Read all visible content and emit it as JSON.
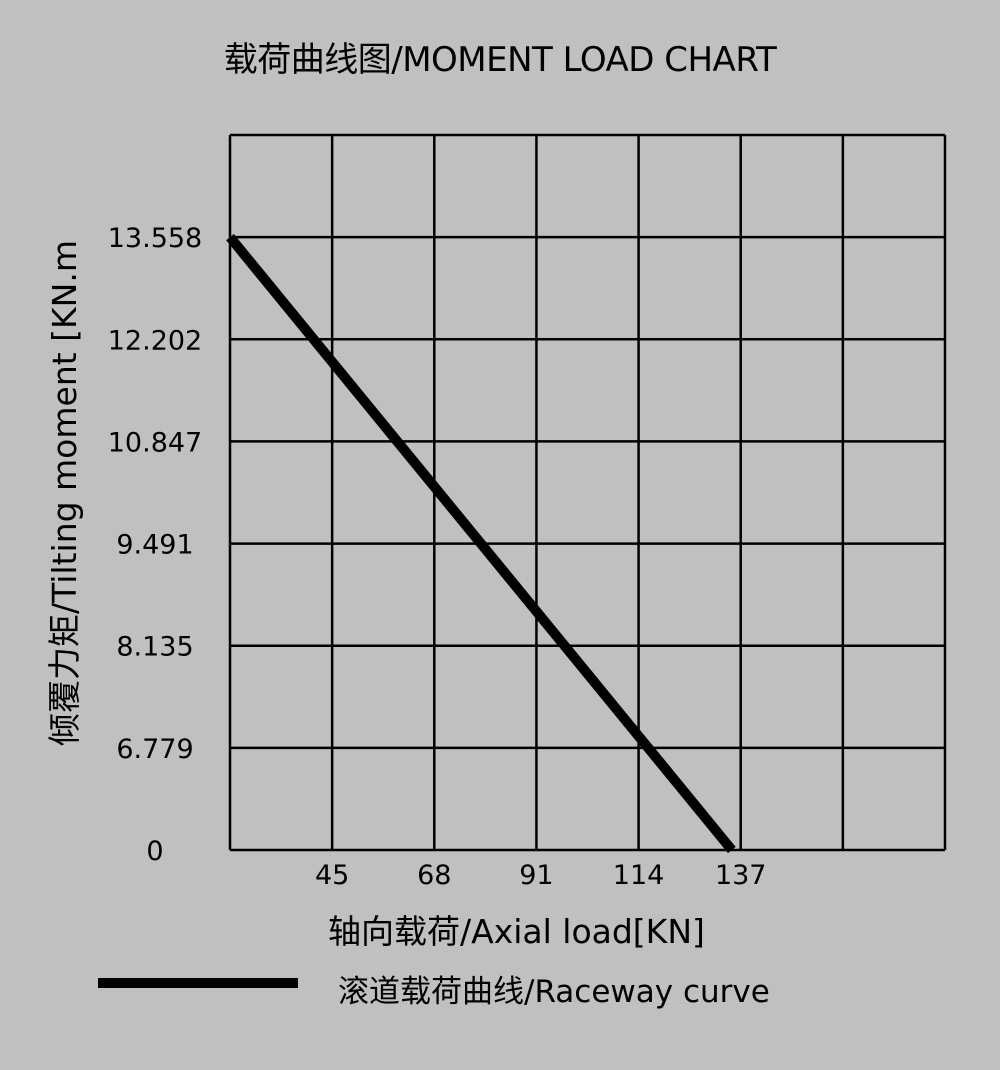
{
  "chart_data": {
    "type": "line",
    "title": "载荷曲线图/MOMENT LOAD CHART",
    "xlabel": "轴向载荷/Axial load[KN]",
    "ylabel": "倾覆力矩/Tilting moment [KN.m",
    "x_ticks": [
      45,
      68,
      91,
      114,
      137
    ],
    "xlim": [
      22,
      183
    ],
    "y_ticks": [
      0,
      6.779,
      8.135,
      9.491,
      10.847,
      12.202,
      13.558
    ],
    "y_scale": "categorical-even-spacing",
    "grid": true,
    "legend": "bottom",
    "series": [
      {
        "name": "滚道载荷曲线/Raceway curve",
        "color": "#000000",
        "points": [
          [
            22,
            13.558
          ],
          [
            135,
            0
          ]
        ]
      }
    ],
    "background": "#c0c0c0"
  }
}
